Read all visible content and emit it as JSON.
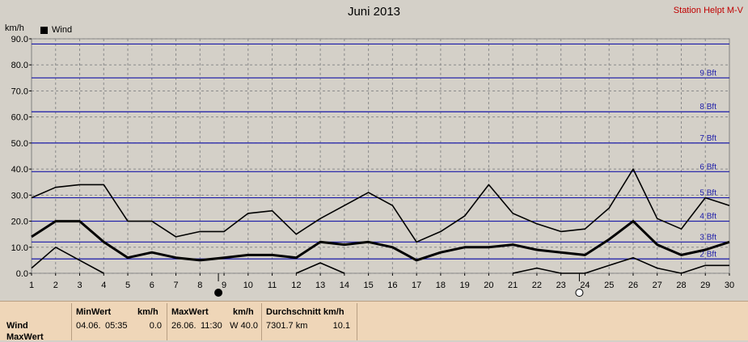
{
  "title": "Juni 2013",
  "station": "Station Helpt M-V",
  "legend": {
    "label": "Wind",
    "color": "#000000"
  },
  "chart_data": {
    "type": "line",
    "ylabel": "km/h",
    "ylim": [
      0,
      90
    ],
    "yticks": [
      "0.0",
      "10.0",
      "20.0",
      "30.0",
      "40.0",
      "50.0",
      "60.0",
      "70.0",
      "80.0",
      "90.0"
    ],
    "x": [
      1,
      2,
      3,
      4,
      5,
      6,
      7,
      8,
      9,
      10,
      11,
      12,
      13,
      14,
      15,
      16,
      17,
      18,
      19,
      20,
      21,
      22,
      23,
      24,
      25,
      26,
      27,
      28,
      29,
      30
    ],
    "xlim": [
      1,
      30
    ],
    "grid": true,
    "beaufort": [
      {
        "label": "2 Bft",
        "value": 5.5
      },
      {
        "label": "3 Bft",
        "value": 12
      },
      {
        "label": "4 Bft",
        "value": 20
      },
      {
        "label": "5 Bft",
        "value": 29
      },
      {
        "label": "6 Bft",
        "value": 39
      },
      {
        "label": "7 Bft",
        "value": 50
      },
      {
        "label": "8 Bft",
        "value": 62
      },
      {
        "label": "9 Bft",
        "value": 75
      },
      {
        "label": "",
        "value": 88
      }
    ],
    "series": [
      {
        "name": "Wind",
        "role": "max",
        "width": 1.6,
        "values": [
          29,
          33,
          34,
          34,
          20,
          20,
          14,
          16,
          16,
          23,
          24,
          15,
          21,
          26,
          31,
          26,
          12,
          16,
          22,
          34,
          23,
          19,
          16,
          17,
          25,
          40,
          21,
          17,
          29,
          26
        ]
      },
      {
        "name": "Wind",
        "role": "mean",
        "width": 3,
        "values": [
          14,
          20,
          20,
          12,
          6,
          8,
          6,
          5,
          6,
          7,
          7,
          6,
          12,
          11,
          12,
          10,
          5,
          8,
          10,
          10,
          11,
          9,
          8,
          7,
          13,
          20,
          11,
          7,
          9,
          12
        ]
      },
      {
        "name": "Wind",
        "role": "min",
        "width": 1.6,
        "values": [
          2,
          10,
          5,
          0,
          null,
          null,
          null,
          null,
          null,
          null,
          null,
          0,
          4,
          0,
          null,
          null,
          null,
          null,
          null,
          null,
          0,
          2,
          0,
          0,
          3,
          6,
          2,
          0,
          3,
          3
        ]
      }
    ],
    "moon_phases": [
      {
        "day": 9,
        "phase": "new"
      },
      {
        "day": 24,
        "phase": "full"
      }
    ]
  },
  "stats": {
    "row_label": "Wind",
    "row_label2": "MaxWert",
    "min": {
      "header": "MinWert",
      "unit": "km/h",
      "date": "04.06.",
      "time": "05:35",
      "value": "0.0"
    },
    "max": {
      "header": "MaxWert",
      "unit": "km/h",
      "date": "26.06.",
      "time": "11:30",
      "value": "W 40.0"
    },
    "avg": {
      "header": "Durchschnitt km/h",
      "distance": "7301.7 km",
      "value": "10.1"
    }
  }
}
